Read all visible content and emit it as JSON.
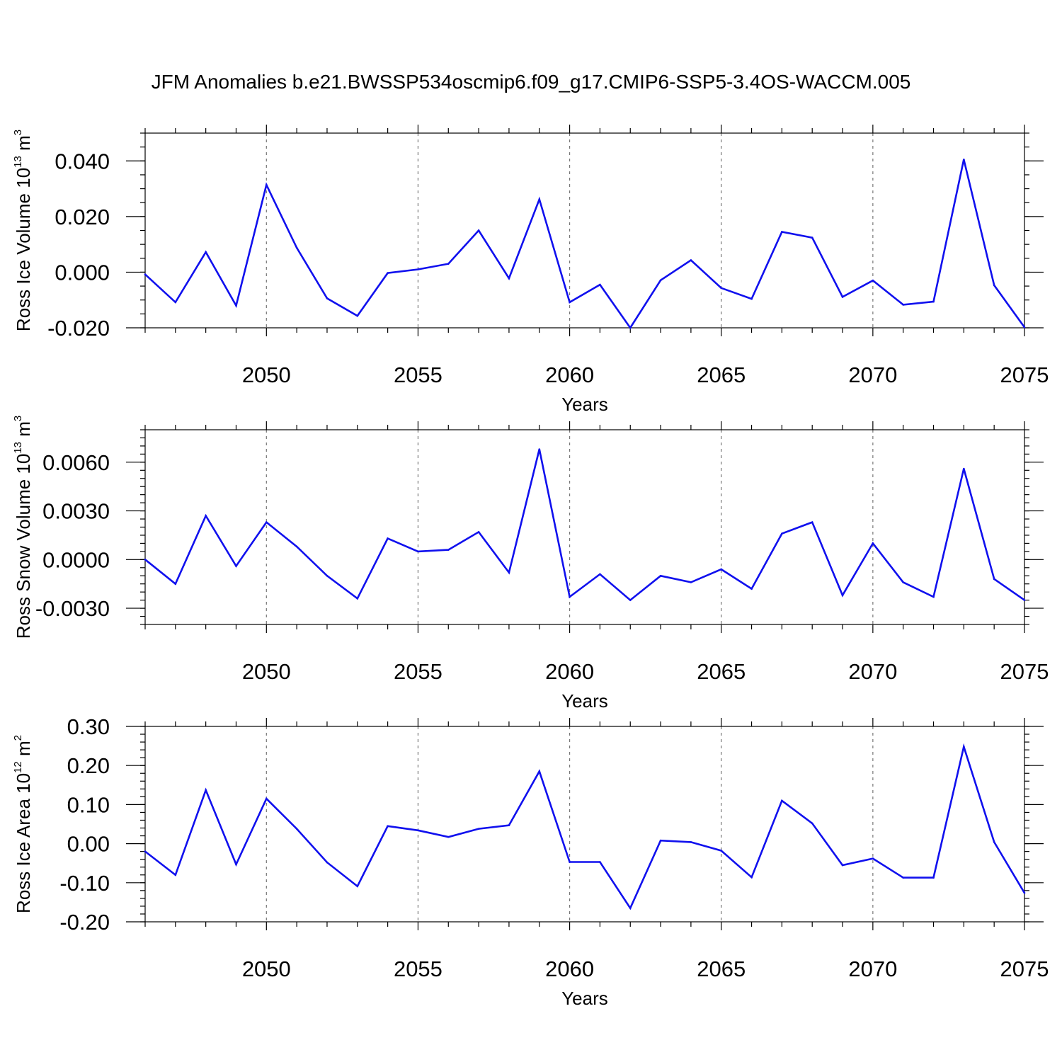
{
  "figure": {
    "title": "JFM Anomalies b.e21.BWSSP534oscmip6.f09_g17.CMIP6-SSP5-3.4OS-WACCM.005"
  },
  "chart_data": [
    {
      "type": "line",
      "title": "",
      "xlabel": "Years",
      "ylabel": {
        "prefix": "Ross Ice Volume 10",
        "exp": "13",
        "unit": " m",
        "unit_exp": "3"
      },
      "xlim": [
        2046,
        2075
      ],
      "ylim": [
        -0.02,
        0.05
      ],
      "x_ticks": [
        "2050",
        "2055",
        "2060",
        "2065",
        "2070",
        "2075"
      ],
      "y_ticks": [
        {
          "value": 0.04,
          "label": "0.040"
        },
        {
          "value": 0.02,
          "label": "0.020"
        },
        {
          "value": 0.0,
          "label": "0.000"
        },
        {
          "value": -0.02,
          "label": "-0.020"
        }
      ],
      "y_minor_step": 0.005,
      "grid": "vertical dashed at major x ticks",
      "color": "#1010ee",
      "x": [
        2046,
        2047,
        2048,
        2049,
        2050,
        2051,
        2052,
        2053,
        2054,
        2055,
        2056,
        2057,
        2058,
        2059,
        2060,
        2061,
        2062,
        2063,
        2064,
        2065,
        2066,
        2067,
        2068,
        2069,
        2070,
        2071,
        2072,
        2073,
        2074,
        2075
      ],
      "values": [
        -0.0008,
        -0.0108,
        0.0072,
        -0.012,
        0.0314,
        0.0088,
        -0.0094,
        -0.0157,
        -0.0003,
        0.001,
        0.003,
        0.015,
        -0.0022,
        0.0262,
        -0.0108,
        -0.0045,
        -0.02,
        -0.0029,
        0.0043,
        -0.0057,
        -0.0096,
        0.0145,
        0.0124,
        -0.0089,
        -0.003,
        -0.0117,
        -0.0106,
        0.0405,
        -0.0047,
        -0.0198
      ]
    },
    {
      "type": "line",
      "title": "",
      "xlabel": "Years",
      "ylabel": {
        "prefix": "Ross Snow Volume 10",
        "exp": "13",
        "unit": " m",
        "unit_exp": "3"
      },
      "xlim": [
        2046,
        2075
      ],
      "ylim": [
        -0.004,
        0.008
      ],
      "x_ticks": [
        "2050",
        "2055",
        "2060",
        "2065",
        "2070",
        "2075"
      ],
      "y_ticks": [
        {
          "value": 0.006,
          "label": "0.0060"
        },
        {
          "value": 0.003,
          "label": "0.0030"
        },
        {
          "value": 0.0,
          "label": "0.0000"
        },
        {
          "value": -0.003,
          "label": "-0.0030"
        }
      ],
      "y_minor_step": 0.0005,
      "grid": "vertical dashed at major x ticks",
      "color": "#1010ee",
      "x": [
        2046,
        2047,
        2048,
        2049,
        2050,
        2051,
        2052,
        2053,
        2054,
        2055,
        2056,
        2057,
        2058,
        2059,
        2060,
        2061,
        2062,
        2063,
        2064,
        2065,
        2066,
        2067,
        2068,
        2069,
        2070,
        2071,
        2072,
        2073,
        2074,
        2075
      ],
      "values": [
        0.0,
        -0.0015,
        0.0027,
        -0.0004,
        0.0023,
        0.0008,
        -0.001,
        -0.0024,
        0.0013,
        0.0005,
        0.0006,
        0.0017,
        -0.0008,
        0.0068,
        -0.0023,
        -0.0009,
        -0.0025,
        -0.001,
        -0.0014,
        -0.0006,
        -0.0018,
        0.0016,
        0.0023,
        -0.0022,
        0.001,
        -0.0014,
        -0.0023,
        0.0056,
        -0.0012,
        -0.0025
      ]
    },
    {
      "type": "line",
      "title": "",
      "xlabel": "Years",
      "ylabel": {
        "prefix": "Ross Ice Area 10",
        "exp": "12",
        "unit": " m",
        "unit_exp": "2"
      },
      "xlim": [
        2046,
        2075
      ],
      "ylim": [
        -0.2,
        0.3
      ],
      "x_ticks": [
        "2050",
        "2055",
        "2060",
        "2065",
        "2070",
        "2075"
      ],
      "y_ticks": [
        {
          "value": 0.3,
          "label": "0.30"
        },
        {
          "value": 0.2,
          "label": "0.20"
        },
        {
          "value": 0.1,
          "label": "0.10"
        },
        {
          "value": 0.0,
          "label": "0.00"
        },
        {
          "value": -0.1,
          "label": "-0.10"
        },
        {
          "value": -0.2,
          "label": "-0.20"
        }
      ],
      "y_minor_step": 0.02,
      "grid": "vertical dashed at major x ticks",
      "color": "#1010ee",
      "x": [
        2046,
        2047,
        2048,
        2049,
        2050,
        2051,
        2052,
        2053,
        2054,
        2055,
        2056,
        2057,
        2058,
        2059,
        2060,
        2061,
        2062,
        2063,
        2064,
        2065,
        2066,
        2067,
        2068,
        2069,
        2070,
        2071,
        2072,
        2073,
        2074,
        2075
      ],
      "values": [
        -0.02,
        -0.08,
        0.137,
        -0.053,
        0.115,
        0.038,
        -0.048,
        -0.109,
        0.045,
        0.034,
        0.017,
        0.038,
        0.047,
        0.185,
        -0.047,
        -0.047,
        -0.165,
        0.008,
        0.004,
        -0.018,
        -0.086,
        0.11,
        0.052,
        -0.055,
        -0.038,
        -0.087,
        -0.087,
        0.248,
        0.004,
        -0.126
      ]
    }
  ]
}
